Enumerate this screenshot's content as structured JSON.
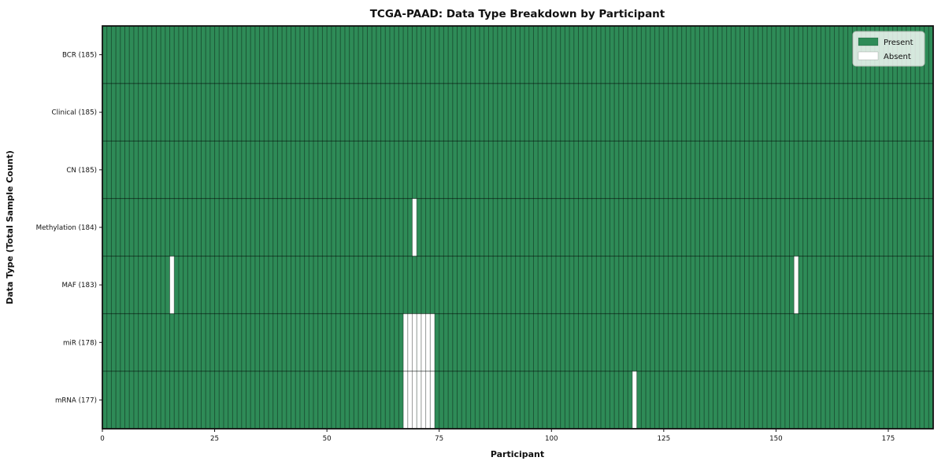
{
  "chart_data": {
    "type": "heatmap",
    "title": "TCGA-PAAD: Data Type Breakdown by Participant",
    "xlabel": "Participant",
    "ylabel": "Data Type (Total Sample Count)",
    "x_ticks": [
      0,
      25,
      50,
      75,
      100,
      125,
      150,
      175
    ],
    "xlim": [
      0,
      185
    ],
    "n_participants": 185,
    "grid": false,
    "legend_position": "upper right",
    "rows": [
      {
        "label": "BCR (185)",
        "data_type": "BCR",
        "present_count": 185,
        "absent_participants": []
      },
      {
        "label": "Clinical (185)",
        "data_type": "Clinical",
        "present_count": 185,
        "absent_participants": []
      },
      {
        "label": "CN (185)",
        "data_type": "CN",
        "present_count": 185,
        "absent_participants": []
      },
      {
        "label": "Methylation (184)",
        "data_type": "Methylation",
        "present_count": 184,
        "absent_participants": [
          69
        ]
      },
      {
        "label": "MAF (183)",
        "data_type": "MAF",
        "present_count": 183,
        "absent_participants": [
          15,
          154
        ]
      },
      {
        "label": "miR (178)",
        "data_type": "miR",
        "present_count": 178,
        "absent_participants": [
          67,
          68,
          69,
          70,
          71,
          72,
          73
        ]
      },
      {
        "label": "mRNA (177)",
        "data_type": "mRNA",
        "present_count": 177,
        "absent_participants": [
          67,
          68,
          69,
          70,
          71,
          72,
          73,
          118
        ]
      }
    ],
    "legend": [
      {
        "label": "Present",
        "color": "#2e8b57"
      },
      {
        "label": "Absent",
        "color": "#ffffff"
      }
    ],
    "colors": {
      "present": "#2e8b57",
      "absent": "#ffffff",
      "bar_edge": "rgba(0,0,0,0.38)",
      "row_separator": "rgba(0,0,0,0.55)",
      "spine": "#111111",
      "legend_bg": "rgba(255,255,255,0.8)",
      "legend_border": "#b5bdb5"
    }
  }
}
